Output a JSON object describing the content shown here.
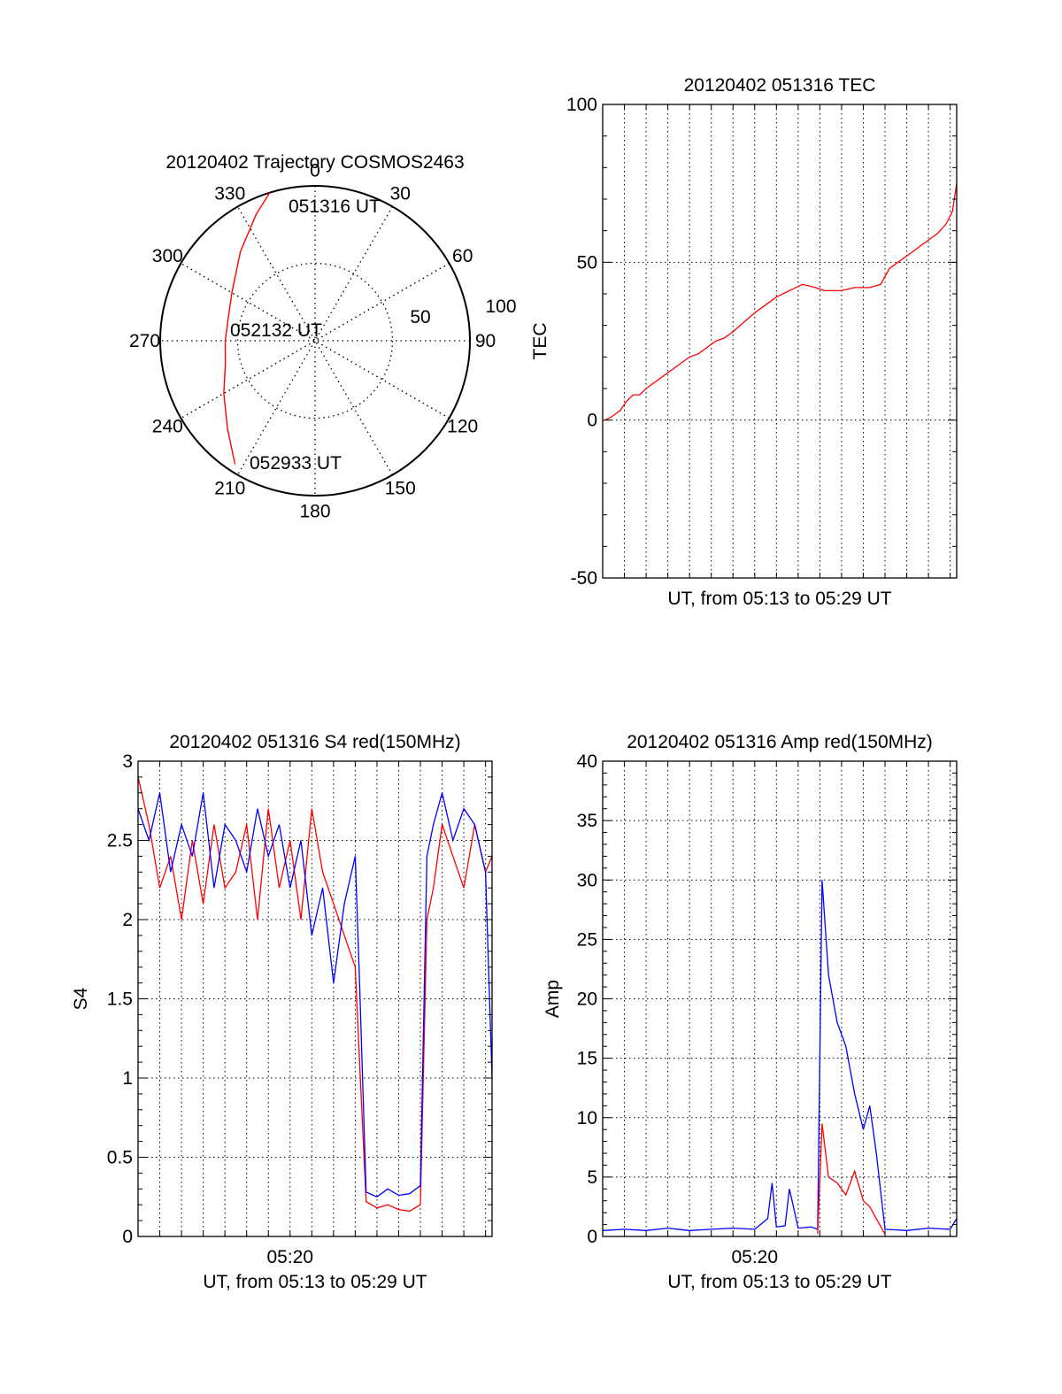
{
  "colors": {
    "red": "#ff0000",
    "blue": "#0000ff",
    "axis": "#000000",
    "grid": "#000000"
  },
  "chart_data": [
    {
      "type": "polar",
      "title": "20120402 Trajectory COSMOS2463",
      "angle_ticks": [
        "0",
        "30",
        "60",
        "90",
        "120",
        "150",
        "180",
        "210",
        "240",
        "270",
        "300",
        "330"
      ],
      "radius_ticks": [
        "50",
        "100"
      ],
      "rlim": [
        0,
        100
      ],
      "grid": true,
      "trajectory": {
        "color": "red",
        "points": [
          [
            343,
            100
          ],
          [
            335,
            90
          ],
          [
            320,
            75
          ],
          [
            300,
            62
          ],
          [
            285,
            58
          ],
          [
            270,
            58
          ],
          [
            255,
            60
          ],
          [
            240,
            68
          ],
          [
            225,
            80
          ],
          [
            213,
            95
          ]
        ]
      },
      "annotations": [
        "051316 UT",
        "052132 UT",
        "052933 UT"
      ]
    },
    {
      "type": "line",
      "title": "20120402 051316 TEC",
      "ylabel": "TEC",
      "xlabel": "UT, from 05:13 to 05:29 UT",
      "ylim": [
        -50,
        100
      ],
      "yticks": [
        "-50",
        "0",
        "50",
        "100"
      ],
      "xlim": [
        0,
        16.3
      ],
      "grid": true,
      "series": [
        {
          "color": "red",
          "x": [
            0.1,
            0.4,
            0.8,
            1.1,
            1.4,
            1.7,
            2.0,
            2.4,
            2.8,
            3.2,
            3.6,
            4.0,
            4.4,
            4.8,
            5.2,
            5.6,
            6.0,
            6.5,
            7.0,
            7.4,
            8.0,
            8.6,
            9.2,
            9.8,
            10.2,
            10.6,
            11.0,
            11.6,
            12.3,
            12.8,
            13.2,
            13.6,
            14.2,
            14.8,
            15.4,
            15.8,
            16.1,
            16.3
          ],
          "y": [
            0,
            1,
            3,
            6,
            8,
            8,
            10,
            12,
            14,
            16,
            18,
            20,
            21,
            23,
            25,
            26,
            28,
            31,
            34,
            36,
            39,
            41,
            43,
            42,
            41,
            41,
            41,
            42,
            42,
            43,
            48,
            50,
            53,
            56,
            59,
            62,
            66,
            75
          ]
        }
      ]
    },
    {
      "type": "line",
      "title": "20120402 051316 S4 red(150MHz)",
      "ylabel": "S4",
      "xlabel": "UT, from 05:13 to 05:29 UT",
      "ylim": [
        0,
        3
      ],
      "yticks": [
        "0",
        "0.5",
        "1",
        "1.5",
        "2",
        "2.5",
        "3"
      ],
      "xticklabels": [
        {
          "x": 7.0,
          "label": "05:20"
        }
      ],
      "xlim": [
        0,
        16.3
      ],
      "grid": true,
      "series": [
        {
          "color": "red",
          "x": [
            0.0,
            0.5,
            1.0,
            1.5,
            2.0,
            2.5,
            3.0,
            3.5,
            4.0,
            4.5,
            5.0,
            5.5,
            6.0,
            6.5,
            7.0,
            7.5,
            8.0,
            8.5,
            9.0,
            9.5,
            10.0,
            10.2,
            10.5,
            11.0,
            11.5,
            12.0,
            12.5,
            13.0,
            13.3,
            13.6,
            14.0,
            14.5,
            15.0,
            15.5,
            16.0,
            16.3
          ],
          "y": [
            2.9,
            2.6,
            2.2,
            2.4,
            2.0,
            2.5,
            2.1,
            2.6,
            2.2,
            2.3,
            2.6,
            2.0,
            2.7,
            2.2,
            2.5,
            2.0,
            2.7,
            2.3,
            2.1,
            1.9,
            1.7,
            1.1,
            0.22,
            0.18,
            0.2,
            0.17,
            0.16,
            0.2,
            2.0,
            2.2,
            2.6,
            2.4,
            2.2,
            2.6,
            2.3,
            2.4
          ]
        },
        {
          "color": "blue",
          "x": [
            0.0,
            0.5,
            1.0,
            1.5,
            2.0,
            2.5,
            3.0,
            3.5,
            4.0,
            4.5,
            5.0,
            5.5,
            6.0,
            6.5,
            7.0,
            7.5,
            8.0,
            8.5,
            9.0,
            9.5,
            10.0,
            10.2,
            10.5,
            11.0,
            11.5,
            12.0,
            12.5,
            13.0,
            13.3,
            13.6,
            14.0,
            14.5,
            15.0,
            15.5,
            16.0,
            16.3
          ],
          "y": [
            2.7,
            2.5,
            2.8,
            2.3,
            2.6,
            2.4,
            2.8,
            2.2,
            2.6,
            2.5,
            2.3,
            2.7,
            2.4,
            2.6,
            2.2,
            2.5,
            1.9,
            2.2,
            1.6,
            2.1,
            2.4,
            1.6,
            0.28,
            0.25,
            0.3,
            0.26,
            0.27,
            0.32,
            2.4,
            2.6,
            2.8,
            2.5,
            2.7,
            2.6,
            2.3,
            1.0
          ]
        }
      ]
    },
    {
      "type": "line",
      "title": "20120402 051316 Amp red(150MHz)",
      "ylabel": "Amp",
      "xlabel": "UT, from 05:13 to 05:29 UT",
      "ylim": [
        0,
        40
      ],
      "yticks": [
        "0",
        "5",
        "10",
        "15",
        "20",
        "25",
        "30",
        "35",
        "40"
      ],
      "xticklabels": [
        {
          "x": 7.0,
          "label": "05:20"
        }
      ],
      "xlim": [
        0,
        16.3
      ],
      "grid": true,
      "series": [
        {
          "color": "blue",
          "x": [
            0.0,
            1.0,
            2.0,
            3.0,
            4.0,
            5.0,
            6.0,
            7.0,
            7.6,
            7.8,
            8.0,
            8.4,
            8.6,
            9.0,
            9.6,
            9.9,
            10.1,
            10.4,
            10.8,
            11.2,
            11.6,
            12.0,
            12.3,
            12.6,
            13.0,
            14.0,
            15.0,
            16.0,
            16.3
          ],
          "y": [
            0.5,
            0.6,
            0.5,
            0.7,
            0.5,
            0.6,
            0.7,
            0.6,
            1.5,
            4.5,
            0.8,
            0.9,
            4.0,
            0.7,
            0.8,
            0.6,
            30.0,
            22.0,
            18.0,
            16.0,
            12.0,
            9.0,
            11.0,
            7.0,
            0.6,
            0.5,
            0.7,
            0.6,
            1.5
          ]
        },
        {
          "color": "red",
          "x": [
            9.9,
            10.1,
            10.4,
            10.8,
            11.2,
            11.6,
            12.0,
            12.3,
            12.6,
            13.0
          ],
          "y": [
            0.2,
            9.5,
            5.0,
            4.5,
            3.5,
            5.5,
            3.0,
            2.5,
            1.5,
            0.2
          ]
        }
      ]
    }
  ]
}
